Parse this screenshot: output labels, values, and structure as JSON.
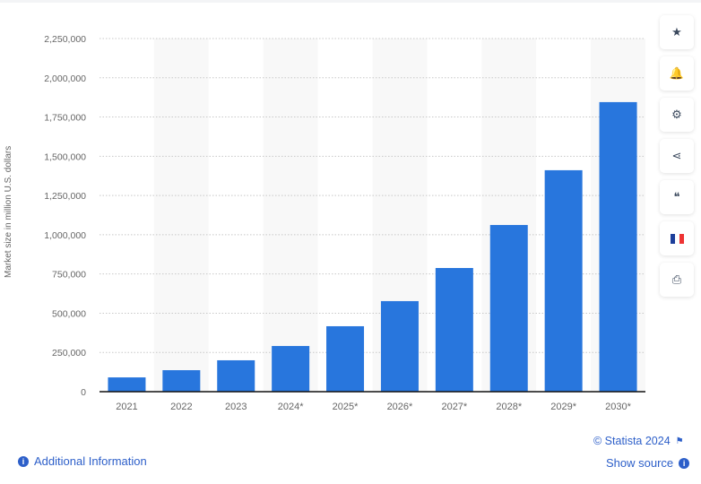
{
  "chart_data": {
    "type": "bar",
    "title": "",
    "ylabel": "Market size in million U.S. dollars",
    "xlabel": "",
    "categories": [
      "2021",
      "2022",
      "2023",
      "2024*",
      "2025*",
      "2026*",
      "2027*",
      "2028*",
      "2029*",
      "2030*"
    ],
    "values": [
      91000,
      137000,
      200000,
      291000,
      417000,
      577000,
      788000,
      1062000,
      1411000,
      1845000
    ],
    "ylim": [
      0,
      2250000
    ],
    "yticks": [
      "0",
      "250,000",
      "500,000",
      "750,000",
      "1,000,000",
      "1,250,000",
      "1,500,000",
      "1,750,000",
      "2,000,000",
      "2,250,000"
    ],
    "grid": true,
    "bar_color": "#2876dd"
  },
  "sidebar": [
    {
      "name": "star-icon",
      "glyph": "★"
    },
    {
      "name": "bell-icon",
      "glyph": "🔔"
    },
    {
      "name": "gear-icon",
      "glyph": "⚙"
    },
    {
      "name": "share-icon",
      "glyph": "⋖"
    },
    {
      "name": "quote-icon",
      "glyph": "❝"
    },
    {
      "name": "flag-fr-icon",
      "glyph": ""
    },
    {
      "name": "print-icon",
      "glyph": "⎙"
    }
  ],
  "footer": {
    "credit": "© Statista 2024",
    "additional_info": "Additional Information",
    "show_source": "Show source"
  }
}
